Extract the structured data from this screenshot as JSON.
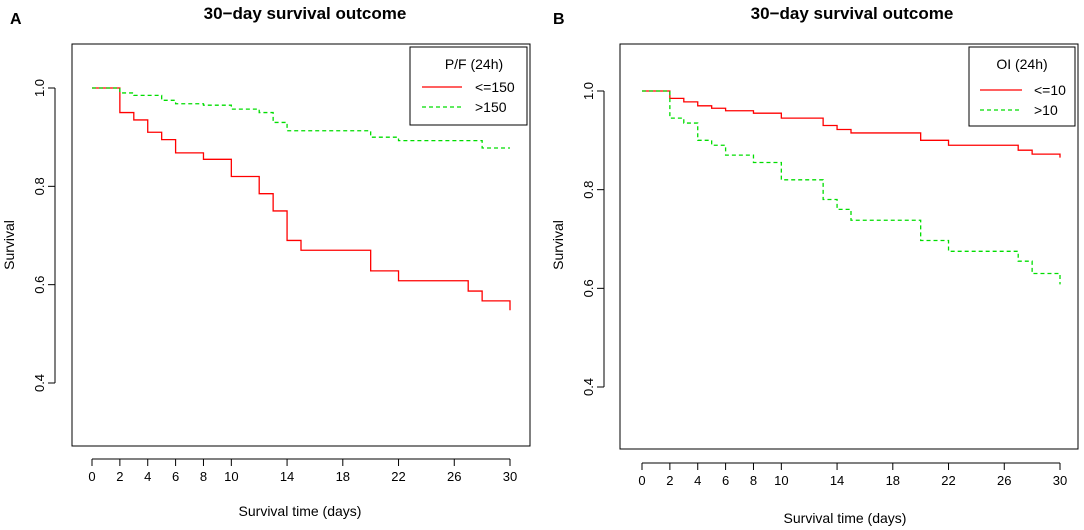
{
  "chart_data": [
    {
      "panel": "A",
      "type": "line",
      "subtype": "kaplan-meier step",
      "title": "30−day survival outcome",
      "xlabel": "Survival time (days)",
      "ylabel": "Survival",
      "xlim": [
        0,
        30
      ],
      "ylim": [
        0.3,
        1.05
      ],
      "xticks": [
        0,
        2,
        4,
        6,
        8,
        10,
        14,
        18,
        22,
        26,
        30
      ],
      "yticks": [
        0.4,
        0.6,
        0.8,
        1.0
      ],
      "ytick_labels": [
        "0.4",
        "0.6",
        "0.8",
        "1.0"
      ],
      "legend": {
        "title": "P/F (24h)",
        "position": "top-right"
      },
      "series": [
        {
          "name": "<=150",
          "color": "#ff0000",
          "dash": "solid",
          "x": [
            0,
            2,
            3,
            4,
            5,
            6,
            8,
            10,
            12,
            13,
            14,
            15,
            20,
            22,
            27,
            28,
            30
          ],
          "y": [
            1.0,
            0.95,
            0.935,
            0.91,
            0.895,
            0.868,
            0.855,
            0.82,
            0.785,
            0.75,
            0.69,
            0.67,
            0.628,
            0.608,
            0.587,
            0.567,
            0.548
          ]
        },
        {
          "name": ">150",
          "color": "#00dd00",
          "dash": "dashed",
          "x": [
            0,
            2,
            3,
            5,
            6,
            8,
            10,
            12,
            13,
            14,
            20,
            22,
            28,
            30
          ],
          "y": [
            1.0,
            0.99,
            0.985,
            0.975,
            0.968,
            0.965,
            0.957,
            0.95,
            0.93,
            0.913,
            0.9,
            0.893,
            0.878,
            0.878
          ]
        }
      ]
    },
    {
      "panel": "B",
      "type": "line",
      "subtype": "kaplan-meier step",
      "title": "30−day survival outcome",
      "xlabel": "Survival time (days)",
      "ylabel": "Survival",
      "xlim": [
        0,
        30
      ],
      "ylim": [
        0.3,
        1.05
      ],
      "xticks": [
        0,
        2,
        4,
        6,
        8,
        10,
        14,
        18,
        22,
        26,
        30
      ],
      "yticks": [
        0.4,
        0.6,
        0.8,
        1.0
      ],
      "ytick_labels": [
        "0.4",
        "0.6",
        "0.8",
        "1.0"
      ],
      "legend": {
        "title": "OI (24h)",
        "position": "top-right"
      },
      "series": [
        {
          "name": "<=10",
          "color": "#ff0000",
          "dash": "solid",
          "x": [
            0,
            2,
            3,
            4,
            5,
            6,
            8,
            10,
            13,
            14,
            15,
            20,
            22,
            27,
            28,
            30
          ],
          "y": [
            1.0,
            0.985,
            0.978,
            0.97,
            0.965,
            0.96,
            0.955,
            0.945,
            0.93,
            0.922,
            0.915,
            0.9,
            0.89,
            0.88,
            0.872,
            0.865
          ]
        },
        {
          "name": ">10",
          "color": "#00dd00",
          "dash": "dashed",
          "x": [
            0,
            2,
            3,
            4,
            5,
            6,
            8,
            10,
            13,
            14,
            15,
            20,
            22,
            27,
            28,
            30
          ],
          "y": [
            1.0,
            0.945,
            0.935,
            0.9,
            0.89,
            0.87,
            0.855,
            0.82,
            0.78,
            0.76,
            0.738,
            0.697,
            0.675,
            0.655,
            0.63,
            0.608
          ]
        }
      ]
    }
  ]
}
